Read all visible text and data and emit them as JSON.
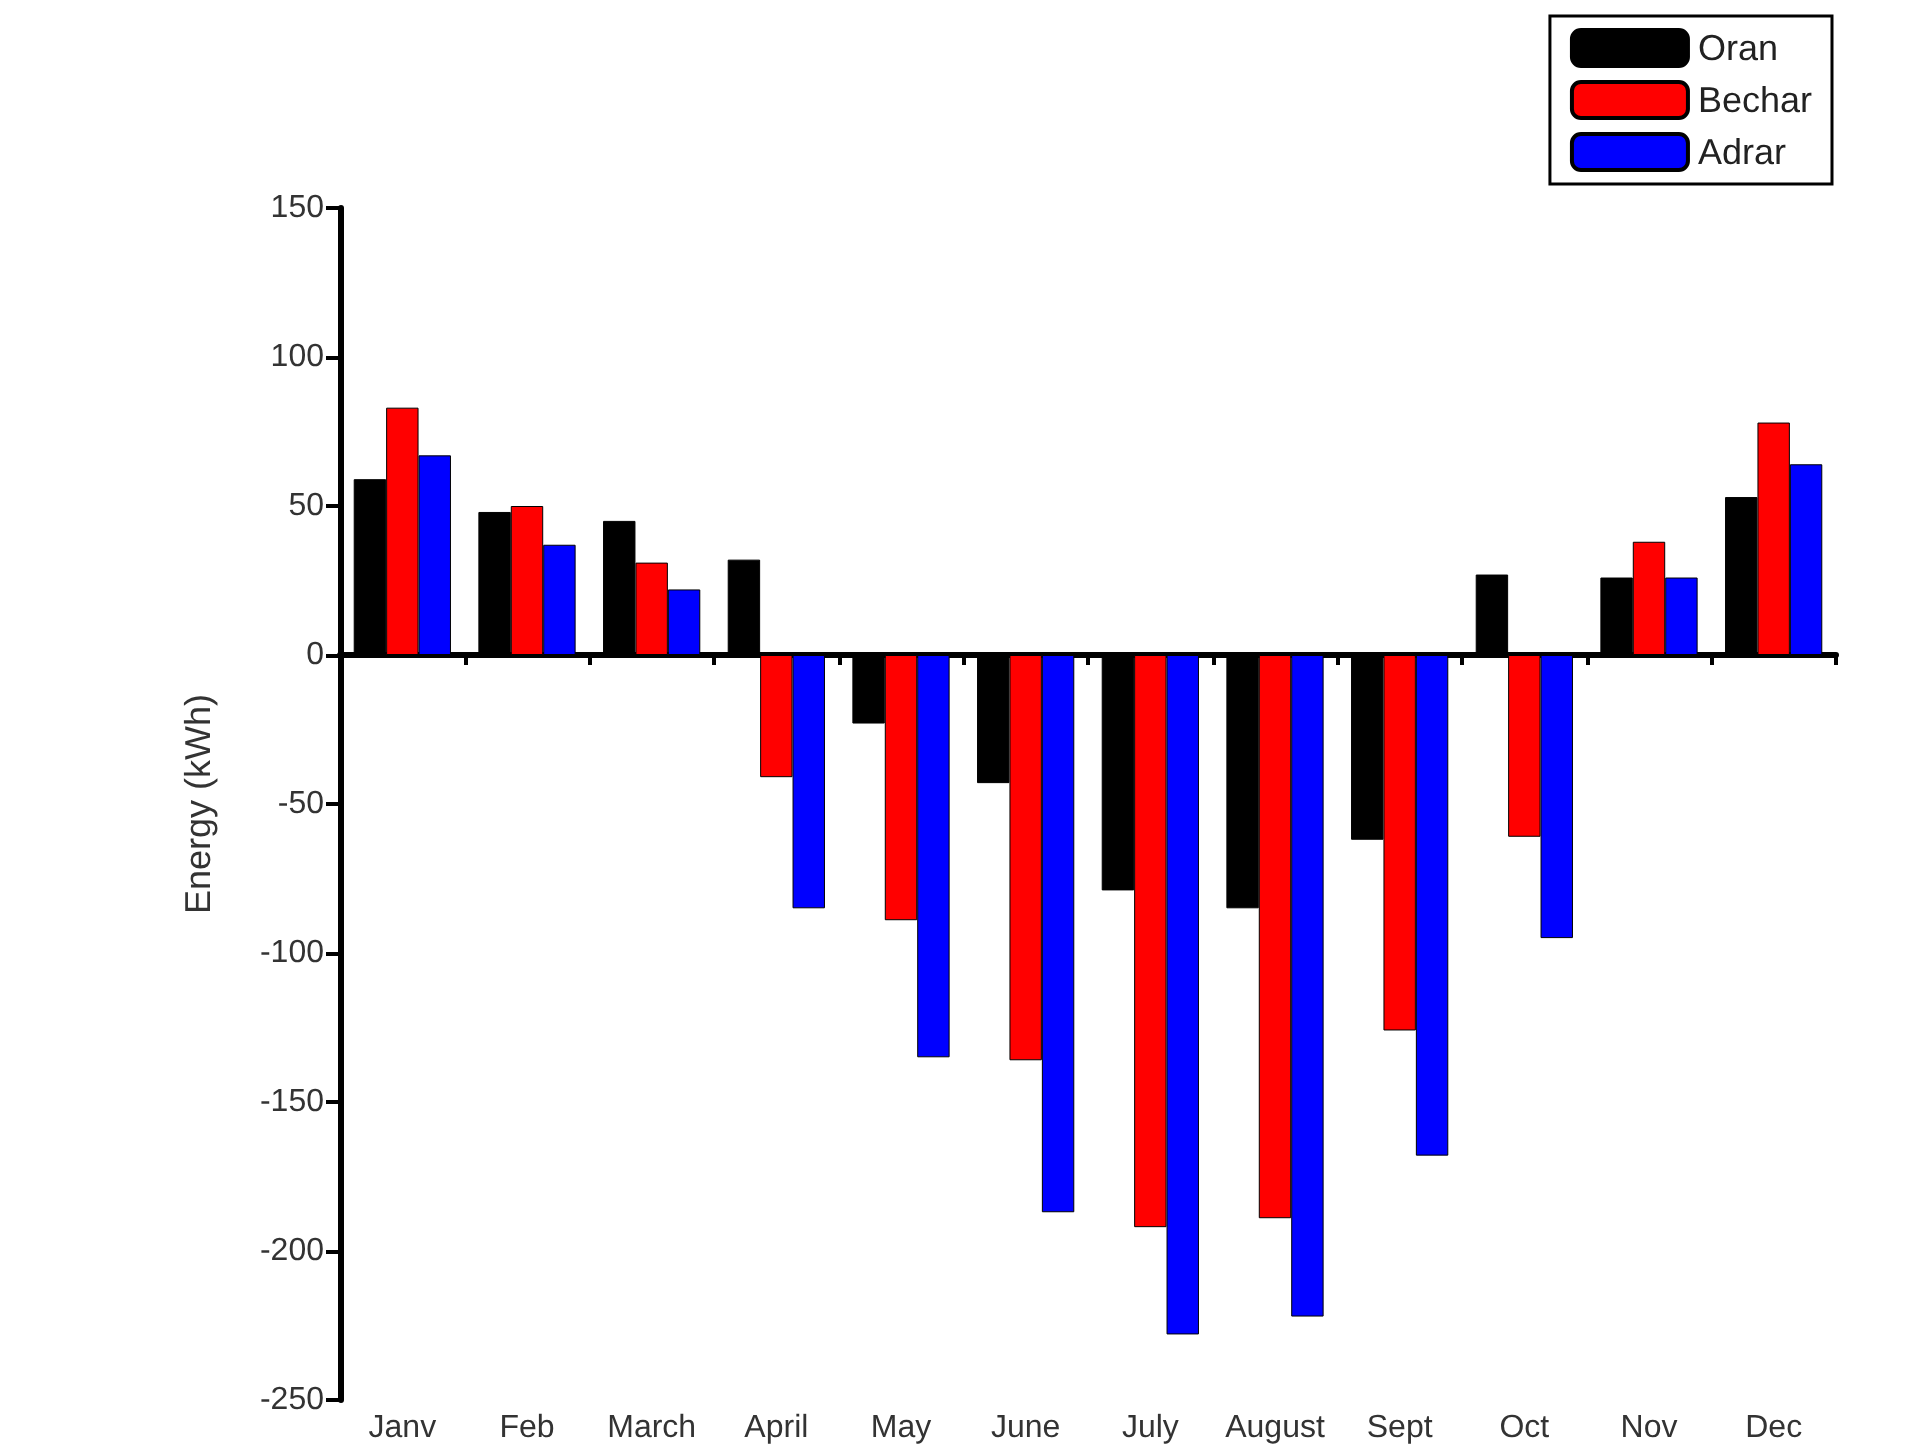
{
  "chart_data": {
    "type": "bar",
    "ylabel": "Energy (kWh)",
    "categories": [
      "Janv",
      "Feb",
      "March",
      "April",
      "May",
      "June",
      "July",
      "August",
      "Sept",
      "Oct",
      "Nov",
      "Dec"
    ],
    "series": [
      {
        "name": "Oran",
        "color": "#000000",
        "values": [
          59,
          48,
          45,
          32,
          -23,
          -43,
          -79,
          -85,
          -62,
          27,
          26,
          53
        ]
      },
      {
        "name": "Bechar",
        "color": "#ff0000",
        "values": [
          83,
          50,
          31,
          -41,
          -89,
          -136,
          -192,
          -189,
          -126,
          -61,
          38,
          78
        ]
      },
      {
        "name": "Adrar",
        "color": "#0000ff",
        "values": [
          67,
          37,
          22,
          -85,
          -135,
          -187,
          -228,
          -222,
          -168,
          -95,
          26,
          64
        ]
      }
    ],
    "ylim": [
      -250,
      150
    ],
    "yticks": [
      -250,
      -200,
      -150,
      -100,
      -50,
      0,
      50,
      100,
      150
    ],
    "legend": "top right"
  }
}
